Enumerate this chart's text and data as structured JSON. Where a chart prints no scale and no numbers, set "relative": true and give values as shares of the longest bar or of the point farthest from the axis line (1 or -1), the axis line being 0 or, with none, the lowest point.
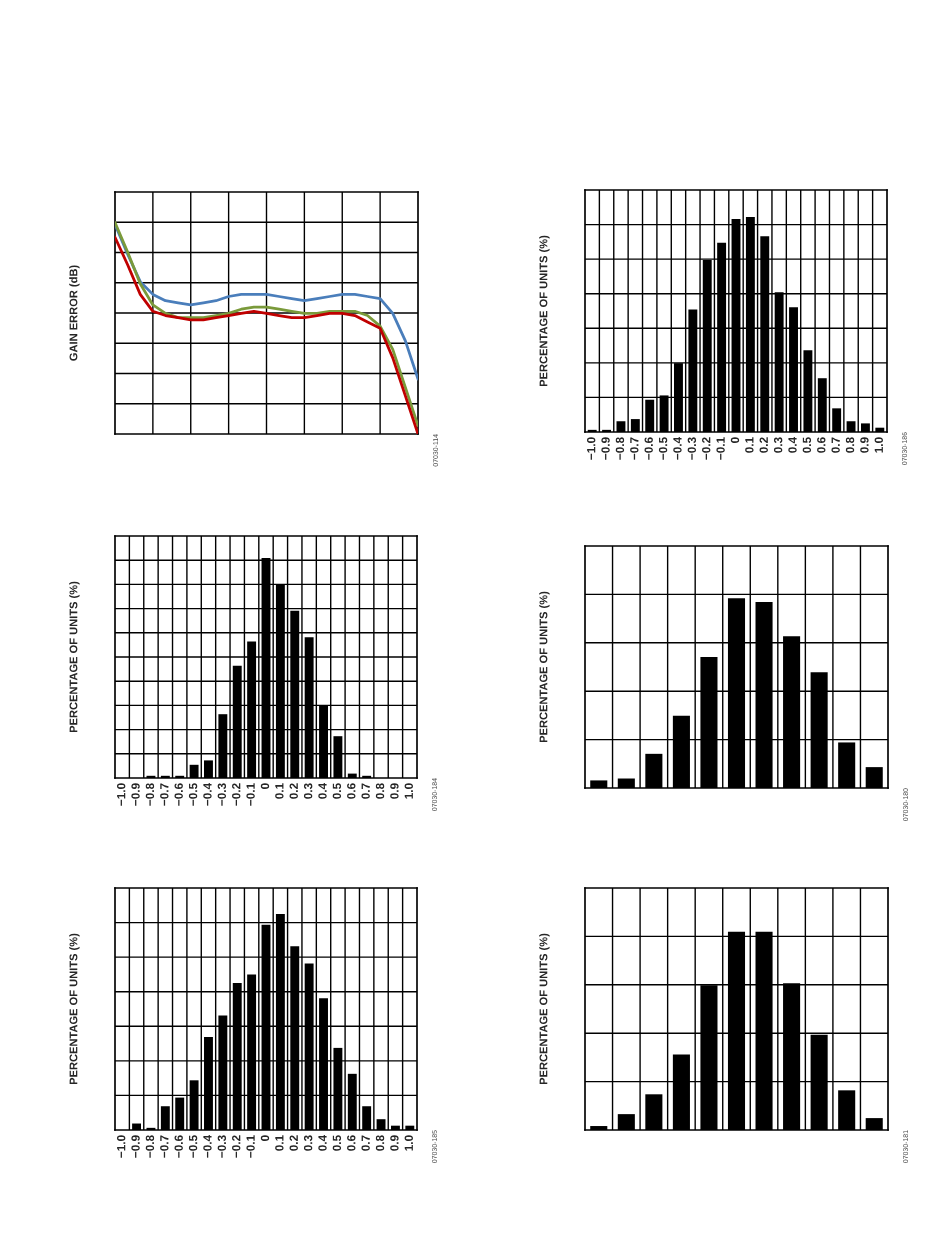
{
  "chart_data": [
    {
      "type": "line",
      "ylabel": "GAIN ERROR (dB)",
      "relative": true,
      "grid": true,
      "tick_labels": false,
      "annotations": [
        "07030-114"
      ],
      "categories": [
        null,
        null,
        null,
        null,
        null,
        null,
        null,
        null,
        null,
        null,
        null,
        null,
        null,
        null,
        null,
        null,
        null,
        null,
        null,
        null,
        null,
        null,
        null,
        null,
        null
      ],
      "series": [
        {
          "color": "#4a7ebb",
          "values": [
            0.99,
            0.85,
            0.72,
            0.66,
            0.63,
            0.62,
            0.61,
            0.62,
            0.63,
            0.65,
            0.66,
            0.66,
            0.66,
            0.65,
            0.64,
            0.63,
            0.64,
            0.65,
            0.66,
            0.66,
            0.65,
            0.64,
            0.57,
            0.44,
            0.26
          ]
        },
        {
          "color": "#7a9a3a",
          "values": [
            1.0,
            0.86,
            0.71,
            0.61,
            0.57,
            0.55,
            0.55,
            0.55,
            0.56,
            0.57,
            0.59,
            0.6,
            0.6,
            0.59,
            0.58,
            0.57,
            0.57,
            0.58,
            0.58,
            0.58,
            0.56,
            0.51,
            0.4,
            0.22,
            0.04
          ]
        },
        {
          "color": "#c00000",
          "values": [
            0.93,
            0.8,
            0.66,
            0.58,
            0.56,
            0.55,
            0.54,
            0.54,
            0.55,
            0.56,
            0.57,
            0.58,
            0.57,
            0.56,
            0.55,
            0.55,
            0.56,
            0.57,
            0.57,
            0.56,
            0.53,
            0.5,
            0.36,
            0.18,
            0.0
          ]
        }
      ]
    },
    {
      "type": "bar",
      "ylabel": "PERCENTAGE OF UNITS (%)",
      "relative": true,
      "grid": true,
      "tick_labels": "x",
      "color": "#000000",
      "annotations": [
        "07030-186"
      ],
      "categories": [
        "−1.0",
        "−0.9",
        "−0.8",
        "−0.7",
        "−0.6",
        "−0.5",
        "−0.4",
        "−0.3",
        "−0.2",
        "−0.1",
        "0",
        "0.1",
        "0.2",
        "0.3",
        "0.4",
        "0.5",
        "0.6",
        "0.7",
        "0.8",
        "0.9",
        "1.0"
      ],
      "values": [
        0.01,
        0.01,
        0.05,
        0.06,
        0.15,
        0.17,
        0.32,
        0.57,
        0.8,
        0.88,
        0.99,
        1.0,
        0.91,
        0.65,
        0.58,
        0.38,
        0.25,
        0.11,
        0.05,
        0.04,
        0.02
      ]
    },
    {
      "type": "bar",
      "ylabel": "PERCENTAGE OF UNITS (%)",
      "relative": true,
      "grid": true,
      "tick_labels": "x",
      "color": "#000000",
      "annotations": [
        "07030-184"
      ],
      "categories": [
        "−1.0",
        "−0.9",
        "−0.8",
        "−0.7",
        "−0.6",
        "−0.5",
        "−0.4",
        "−0.3",
        "−0.2",
        "−0.1",
        "0",
        "0.1",
        "0.2",
        "0.3",
        "0.4",
        "0.5",
        "0.6",
        "0.7",
        "0.8",
        "0.9",
        "1.0"
      ],
      "values": [
        0,
        0,
        0.01,
        0.01,
        0.01,
        0.06,
        0.08,
        0.29,
        0.51,
        0.62,
        1.0,
        0.88,
        0.76,
        0.64,
        0.33,
        0.19,
        0.02,
        0.01,
        0,
        0,
        0
      ]
    },
    {
      "type": "bar",
      "ylabel": "PERCENTAGE OF UNITS (%)",
      "relative": true,
      "grid": true,
      "tick_labels": false,
      "color": "#000000",
      "annotations": [
        "07030-180"
      ],
      "categories": [
        null,
        null,
        null,
        null,
        null,
        null,
        null,
        null,
        null,
        null,
        null
      ],
      "values": [
        0.04,
        0.05,
        0.18,
        0.38,
        0.69,
        1.0,
        0.98,
        0.8,
        0.61,
        0.24,
        0.11
      ]
    },
    {
      "type": "bar",
      "ylabel": "PERCENTAGE OF UNITS (%)",
      "relative": true,
      "grid": true,
      "tick_labels": "x",
      "color": "#000000",
      "annotations": [
        "07030-185"
      ],
      "categories": [
        "−1.0",
        "−0.9",
        "−0.8",
        "−0.7",
        "−0.6",
        "−0.5",
        "−0.4",
        "−0.3",
        "−0.2",
        "−0.1",
        "0",
        "0.1",
        "0.2",
        "0.3",
        "0.4",
        "0.5",
        "0.6",
        "0.7",
        "0.8",
        "0.9",
        "1.0"
      ],
      "values": [
        0,
        0.03,
        0.01,
        0.11,
        0.15,
        0.23,
        0.43,
        0.53,
        0.68,
        0.72,
        0.95,
        1.0,
        0.85,
        0.77,
        0.61,
        0.38,
        0.26,
        0.11,
        0.05,
        0.02,
        0.02
      ]
    },
    {
      "type": "bar",
      "ylabel": "PERCENTAGE OF UNITS (%)",
      "relative": true,
      "grid": true,
      "tick_labels": false,
      "color": "#000000",
      "annotations": [
        "07030-181"
      ],
      "categories": [
        null,
        null,
        null,
        null,
        null,
        null,
        null,
        null,
        null,
        null,
        null
      ],
      "values": [
        0.02,
        0.08,
        0.18,
        0.38,
        0.73,
        1.0,
        1.0,
        0.74,
        0.48,
        0.2,
        0.06
      ]
    }
  ]
}
